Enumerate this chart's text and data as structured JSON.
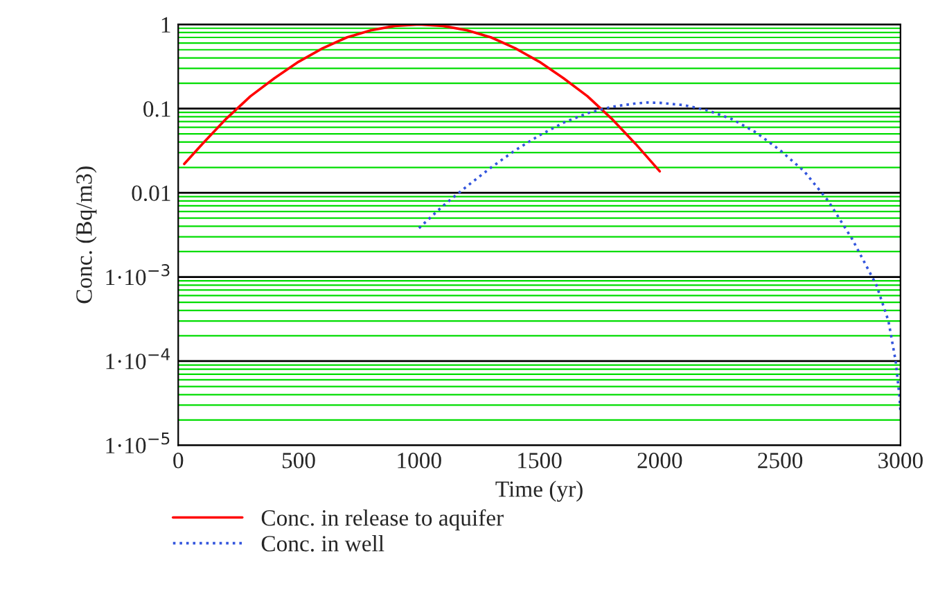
{
  "chart_data": {
    "type": "line",
    "xlabel": "Time (yr)",
    "ylabel": "Conc. (Bq/m3)",
    "xlim": [
      0,
      3000
    ],
    "xticks": [
      0,
      500,
      1000,
      1500,
      2000,
      2500,
      3000
    ],
    "ylim": [
      1e-05,
      1
    ],
    "log": "y",
    "yticks": [
      {
        "value": 1,
        "label": "1"
      },
      {
        "value": 0.1,
        "label": "0.1"
      },
      {
        "value": 0.01,
        "label": "0.01"
      },
      {
        "value": 0.001,
        "label": "1·10$^{−3}$"
      },
      {
        "value": 0.0001,
        "label": "1·10$^{−4}$"
      },
      {
        "value": 1e-05,
        "label": "1·10$^{−5}$"
      },
      {
        "value": 2e-05,
        "label": null
      },
      {
        "value": 3e-05,
        "label": null
      },
      {
        "value": 4e-05,
        "label": null
      },
      {
        "value": 5e-05,
        "label": null
      },
      {
        "value": 6e-05,
        "label": null
      },
      {
        "value": 7e-05,
        "label": null
      },
      {
        "value": 8e-05,
        "label": null
      },
      {
        "value": 9e-05,
        "label": null
      },
      {
        "value": 0.0002,
        "label": null
      },
      {
        "value": 0.0003,
        "label": null
      },
      {
        "value": 0.0004,
        "label": null
      },
      {
        "value": 0.0005,
        "label": null
      },
      {
        "value": 0.0006,
        "label": null
      },
      {
        "value": 0.0007,
        "label": null
      },
      {
        "value": 0.0008,
        "label": null
      },
      {
        "value": 0.0009,
        "label": null
      },
      {
        "value": 0.002,
        "label": null
      },
      {
        "value": 0.003,
        "label": null
      },
      {
        "value": 0.004,
        "label": null
      },
      {
        "value": 0.005,
        "label": null
      },
      {
        "value": 0.006,
        "label": null
      },
      {
        "value": 0.007,
        "label": null
      },
      {
        "value": 0.008,
        "label": null
      },
      {
        "value": 0.009,
        "label": null
      },
      {
        "value": 0.02,
        "label": null
      },
      {
        "value": 0.03,
        "label": null
      },
      {
        "value": 0.04,
        "label": null
      },
      {
        "value": 0.05,
        "label": null
      },
      {
        "value": 0.06,
        "label": null
      },
      {
        "value": 0.07,
        "label": null
      },
      {
        "value": 0.08,
        "label": null
      },
      {
        "value": 0.09,
        "label": null
      },
      {
        "value": 0.2,
        "label": null
      },
      {
        "value": 0.3,
        "label": null
      },
      {
        "value": 0.4,
        "label": null
      },
      {
        "value": 0.5,
        "label": null
      },
      {
        "value": 0.6,
        "label": null
      },
      {
        "value": 0.7,
        "label": null
      },
      {
        "value": 0.8,
        "label": null
      },
      {
        "value": 0.9,
        "label": null
      }
    ],
    "grid": "y",
    "legend": "bottom",
    "series": [
      {
        "name": "Conc. in release to aquifer",
        "color": "#ff0000",
        "line_style": "solid",
        "x": [
          25,
          100,
          200,
          300,
          400,
          500,
          600,
          700,
          800,
          900,
          1000,
          1100,
          1200,
          1300,
          1400,
          1500,
          1600,
          1700,
          1800,
          1900,
          2000
        ],
        "values": [
          0.022,
          0.038,
          0.076,
          0.14,
          0.23,
          0.36,
          0.52,
          0.7,
          0.85,
          0.96,
          1,
          0.96,
          0.85,
          0.7,
          0.52,
          0.36,
          0.23,
          0.14,
          0.076,
          0.038,
          0.018
        ]
      },
      {
        "name": "Conc. in well",
        "color": "#3355dd",
        "line_style": "dotted",
        "x": [
          1000,
          1100,
          1200,
          1300,
          1400,
          1500,
          1600,
          1700,
          1800,
          1900,
          1950,
          2000,
          2100,
          2200,
          2300,
          2400,
          2500,
          2600,
          2700,
          2800,
          2900,
          2950,
          2980,
          2995,
          3000
        ],
        "values": [
          0.0038,
          0.007,
          0.012,
          0.02,
          0.032,
          0.048,
          0.068,
          0.088,
          0.105,
          0.115,
          0.118,
          0.117,
          0.11,
          0.095,
          0.075,
          0.052,
          0.032,
          0.018,
          0.008,
          0.0028,
          0.0008,
          0.0003,
          0.0001,
          4e-05,
          2.5e-05
        ]
      }
    ]
  }
}
